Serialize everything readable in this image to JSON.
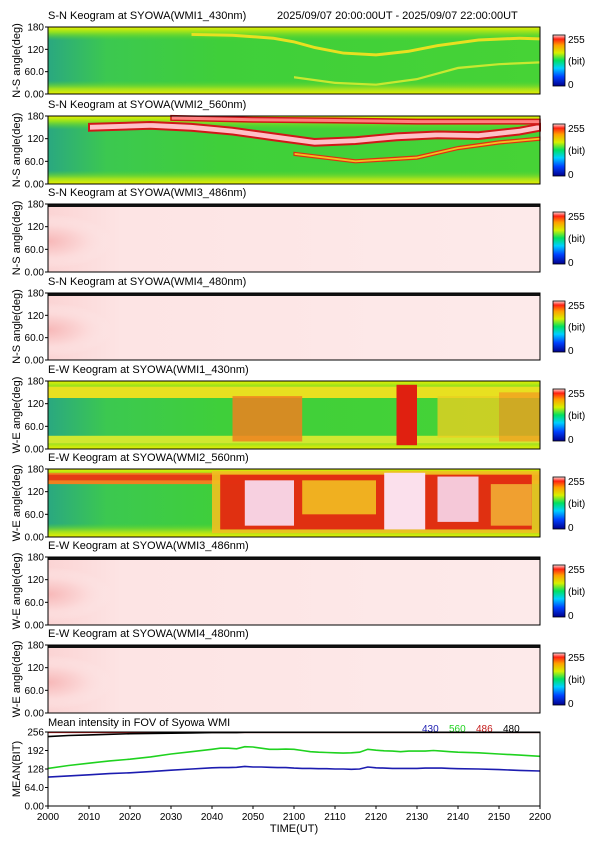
{
  "header": {
    "range_text": "2025/09/07 20:00:00UT - 2025/09/07 22:00:00UT"
  },
  "colorbar": {
    "max_label": "255",
    "unit_label": "(bit)",
    "min_label": "0"
  },
  "keograms": [
    {
      "title": "S-N Keogram at SYOWA(WMI1_430nm)",
      "ylabel": "N-S angle(deg)",
      "yticks": [
        "180",
        "120",
        "60.0",
        "0.00"
      ],
      "type": "green",
      "activity": "sn430"
    },
    {
      "title": "S-N Keogram at SYOWA(WMI2_560nm)",
      "ylabel": "N-S angle(deg)",
      "yticks": [
        "180",
        "120",
        "60.0",
        "0.00"
      ],
      "type": "green",
      "activity": "sn560"
    },
    {
      "title": "S-N Keogram at SYOWA(WMI3_486nm)",
      "ylabel": "N-S angle(deg)",
      "yticks": [
        "180",
        "120",
        "60.0",
        "0.00"
      ],
      "type": "pink",
      "activity": "none"
    },
    {
      "title": "S-N Keogram at SYOWA(WMI4_480nm)",
      "ylabel": "N-S angle(deg)",
      "yticks": [
        "180",
        "120",
        "60.0",
        "0.00"
      ],
      "type": "pink",
      "activity": "none"
    },
    {
      "title": "E-W Keogram at SYOWA(WMI1_430nm)",
      "ylabel": "W-E angle(deg)",
      "yticks": [
        "180",
        "120",
        "60.0",
        "0.00"
      ],
      "type": "green",
      "activity": "ew430"
    },
    {
      "title": "E-W Keogram at SYOWA(WMI2_560nm)",
      "ylabel": "W-E angle(deg)",
      "yticks": [
        "180",
        "120",
        "60.0",
        "0.00"
      ],
      "type": "green",
      "activity": "ew560"
    },
    {
      "title": "E-W Keogram at SYOWA(WMI3_486nm)",
      "ylabel": "W-E angle(deg)",
      "yticks": [
        "180",
        "120",
        "60.0",
        "0.00"
      ],
      "type": "pink",
      "activity": "none"
    },
    {
      "title": "E-W Keogram at SYOWA(WMI4_480nm)",
      "ylabel": "W-E angle(deg)",
      "yticks": [
        "180",
        "120",
        "60.0",
        "0.00"
      ],
      "type": "pink",
      "activity": "none"
    }
  ],
  "chart_data": {
    "type": "line",
    "title": "Mean intensity in FOV of Syowa WMI",
    "xlabel": "TIME(UT)",
    "ylabel": "MEAN(BIT)",
    "x_ticks": [
      "2000",
      "2010",
      "2020",
      "2030",
      "2040",
      "2050",
      "2100",
      "2110",
      "2120",
      "2130",
      "2140",
      "2150",
      "2200"
    ],
    "y_ticks": [
      "256",
      "192",
      "128",
      "64.0",
      "0.00"
    ],
    "ylim": [
      0,
      256
    ],
    "legend_placement": "top-right",
    "x": [
      0,
      5,
      10,
      15,
      20,
      25,
      30,
      35,
      40,
      42,
      44,
      46,
      48,
      50,
      52,
      54,
      56,
      58,
      60,
      62,
      64,
      66,
      68,
      70,
      72,
      74,
      76,
      78,
      80,
      82,
      84,
      86,
      88,
      90,
      92,
      94,
      96,
      98,
      100,
      105,
      110,
      115,
      120
    ],
    "series": [
      {
        "name": "430",
        "color": "#1c1cb0",
        "values": [
          100,
          104,
          108,
          112,
          115,
          119,
          124,
          128,
          132,
          133,
          133,
          134,
          137,
          135,
          135,
          134,
          133,
          133,
          131,
          130,
          130,
          129,
          129,
          128,
          128,
          127,
          128,
          135,
          132,
          131,
          130,
          130,
          130,
          130,
          131,
          131,
          131,
          130,
          129,
          128,
          126,
          123,
          121
        ]
      },
      {
        "name": "560",
        "color": "#1fd21f",
        "values": [
          130,
          140,
          148,
          156,
          162,
          170,
          180,
          188,
          196,
          200,
          200,
          198,
          205,
          204,
          200,
          196,
          196,
          197,
          196,
          192,
          188,
          186,
          185,
          184,
          183,
          184,
          186,
          196,
          193,
          191,
          190,
          188,
          190,
          190,
          190,
          192,
          190,
          188,
          186,
          184,
          180,
          176,
          172
        ]
      },
      {
        "name": "486",
        "color": "#c41a1a",
        "values": [
          255,
          255,
          255,
          255,
          255,
          255,
          255,
          255,
          255,
          255,
          255,
          255,
          255,
          255,
          255,
          255,
          255,
          255,
          255,
          255,
          255,
          255,
          255,
          255,
          255,
          255,
          255,
          255,
          255,
          255,
          255,
          255,
          255,
          255,
          255,
          255,
          255,
          255,
          255,
          255,
          255,
          255,
          255
        ]
      },
      {
        "name": "480",
        "color": "#000000",
        "values": [
          240,
          244,
          246,
          248,
          250,
          251,
          252,
          253,
          254,
          254,
          254,
          254,
          255,
          255,
          255,
          255,
          255,
          255,
          255,
          255,
          255,
          255,
          255,
          255,
          255,
          255,
          255,
          255,
          255,
          255,
          255,
          255,
          255,
          255,
          255,
          255,
          255,
          255,
          255,
          255,
          255,
          255,
          255
        ]
      }
    ]
  }
}
